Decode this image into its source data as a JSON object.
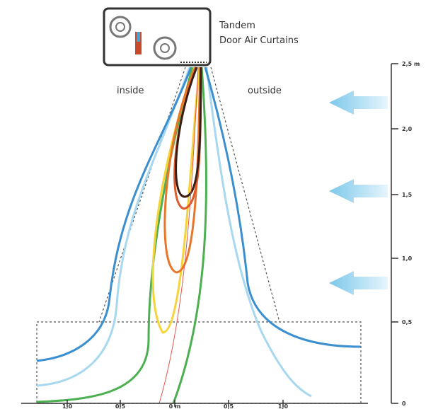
{
  "unit": {
    "title_line1": "Tandem",
    "title_line2": "Door Air Curtains"
  },
  "regions": {
    "inside": "inside",
    "outside": "outside"
  },
  "right_axis": {
    "labels": [
      "2,5 m",
      "2,0",
      "1,5",
      "1,0",
      "0,5",
      "0"
    ]
  },
  "bottom_axis": {
    "labels": [
      "1,0",
      "0,5",
      "0 m",
      "0,5",
      "1,0"
    ]
  }
}
